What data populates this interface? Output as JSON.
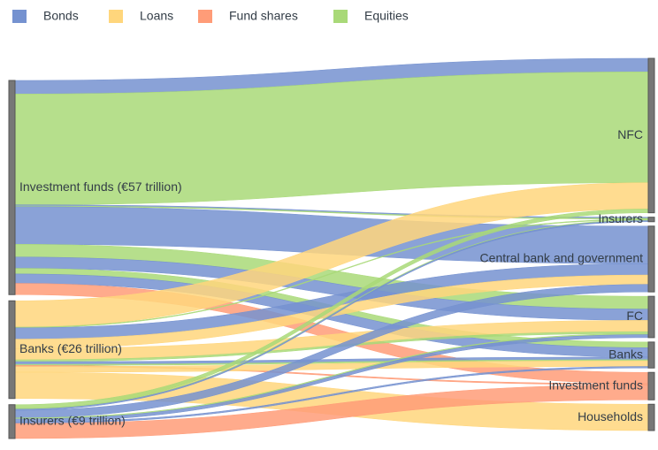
{
  "chart_data": {
    "type": "sankey",
    "legend": [
      {
        "name": "Bonds",
        "color": "#7592d0"
      },
      {
        "name": "Loans",
        "color": "#ffd67c"
      },
      {
        "name": "Fund shares",
        "color": "#ff9c78"
      },
      {
        "name": "Equities",
        "color": "#a9d978"
      }
    ],
    "sources": [
      "Investment funds (€57 trillion)",
      "Banks (€26 trillion)",
      "Insurers (€9 trillion)"
    ],
    "targets": [
      "NFC",
      "Insurers",
      "Central bank and government",
      "FC",
      "Banks",
      "Investment funds",
      "Households"
    ],
    "links": [
      {
        "source": 0,
        "target": 0,
        "type": 0,
        "value": 3.6
      },
      {
        "source": 0,
        "target": 0,
        "type": 3,
        "value": 29.5
      },
      {
        "source": 0,
        "target": 1,
        "type": 0,
        "value": 0.3
      },
      {
        "source": 0,
        "target": 1,
        "type": 3,
        "value": 0.2
      },
      {
        "source": 0,
        "target": 2,
        "type": 0,
        "value": 10
      },
      {
        "source": 0,
        "target": 3,
        "type": 3,
        "value": 3.4
      },
      {
        "source": 0,
        "target": 3,
        "type": 0,
        "value": 3
      },
      {
        "source": 0,
        "target": 4,
        "type": 3,
        "value": 1.5
      },
      {
        "source": 0,
        "target": 4,
        "type": 0,
        "value": 2.5
      },
      {
        "source": 0,
        "target": 5,
        "type": 2,
        "value": 3
      },
      {
        "source": 1,
        "target": 0,
        "type": 1,
        "value": 7
      },
      {
        "source": 1,
        "target": 1,
        "type": 3,
        "value": 0.2
      },
      {
        "source": 1,
        "target": 2,
        "type": 0,
        "value": 3
      },
      {
        "source": 1,
        "target": 2,
        "type": 1,
        "value": 2.5
      },
      {
        "source": 1,
        "target": 3,
        "type": 1,
        "value": 3
      },
      {
        "source": 1,
        "target": 3,
        "type": 3,
        "value": 0.5
      },
      {
        "source": 1,
        "target": 4,
        "type": 0,
        "value": 0.7
      },
      {
        "source": 1,
        "target": 4,
        "type": 3,
        "value": 0.3
      },
      {
        "source": 1,
        "target": 5,
        "type": 2,
        "value": 0.3
      },
      {
        "source": 1,
        "target": 4,
        "type": 1,
        "value": 1.5
      },
      {
        "source": 1,
        "target": 6,
        "type": 1,
        "value": 7
      },
      {
        "source": 2,
        "target": 0,
        "type": 3,
        "value": 1
      },
      {
        "source": 2,
        "target": 1,
        "type": 3,
        "value": 0.2
      },
      {
        "source": 2,
        "target": 1,
        "type": 0,
        "value": 0.3
      },
      {
        "source": 2,
        "target": 2,
        "type": 0,
        "value": 2
      },
      {
        "source": 2,
        "target": 3,
        "type": 3,
        "value": 0.3
      },
      {
        "source": 2,
        "target": 3,
        "type": 0,
        "value": 0.8
      },
      {
        "source": 2,
        "target": 4,
        "type": 0,
        "value": 0.4
      },
      {
        "source": 2,
        "target": 5,
        "type": 2,
        "value": 4
      }
    ]
  }
}
